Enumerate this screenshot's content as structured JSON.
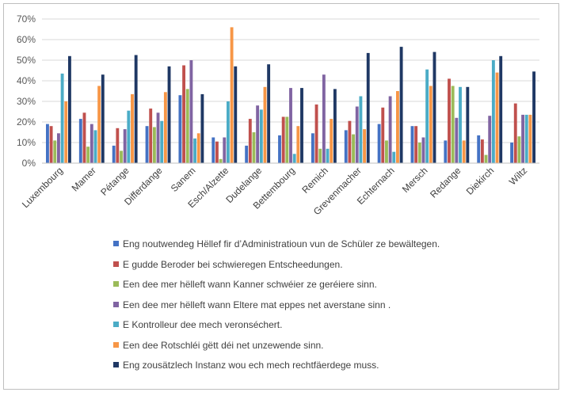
{
  "chart_data": {
    "type": "bar",
    "title": "",
    "xlabel": "",
    "ylabel": "",
    "ylim": [
      0,
      70
    ],
    "y_ticks": [
      "0%",
      "10%",
      "20%",
      "30%",
      "40%",
      "50%",
      "60%",
      "70%"
    ],
    "grid": true,
    "legend_position": "bottom",
    "categories": [
      "Luxembourg",
      "Mamer",
      "Pétange",
      "Differdange",
      "Sanem",
      "Esch/Alzette",
      "Dudelange",
      "Bettembourg",
      "Remich",
      "Grevenmacher",
      "Echternach",
      "Mersch",
      "Redange",
      "Diekirch",
      "Wiltz"
    ],
    "series": [
      {
        "name": "Eng noutwendeg Hëllef fir d’Administratioun vun de Schüler ze bewältegen.",
        "color": "#4472C4",
        "values": [
          19,
          21.5,
          8.5,
          18,
          33,
          12.5,
          8.5,
          13.5,
          14.5,
          16,
          19,
          18,
          11,
          13.5,
          10
        ]
      },
      {
        "name": "E gudde Beroder bei schwieregen Entscheedungen.",
        "color": "#C0504D",
        "values": [
          18,
          24.5,
          17,
          26.5,
          47.5,
          10.5,
          21.5,
          22.5,
          28.5,
          20.5,
          27,
          18,
          41,
          11.5,
          29
        ]
      },
      {
        "name": "Een dee mer hëlleft wann Kanner schwéier ze geréiere sinn.",
        "color": "#9BBB59",
        "values": [
          11,
          8,
          6,
          17.5,
          36,
          2,
          15,
          22.5,
          7,
          14,
          11,
          10,
          37.5,
          4,
          13
        ]
      },
      {
        "name": "Een dee mer hëlleft wann Eltere mat eppes net averstane sinn .",
        "color": "#8064A2",
        "values": [
          14.5,
          19,
          16.5,
          24.5,
          50,
          12.5,
          28,
          36.5,
          43,
          27.5,
          32.5,
          12.5,
          22,
          23,
          23.5
        ]
      },
      {
        "name": "E Kontrolleur dee mech veronséchert.",
        "color": "#4BACC6",
        "values": [
          43.5,
          16,
          25.5,
          20.5,
          12,
          30,
          26,
          4.5,
          7,
          32.5,
          5.5,
          45.5,
          37,
          50,
          23.5
        ]
      },
      {
        "name": "Een dee Rotschléi gëtt déi net unzewende sinn.",
        "color": "#F79646",
        "values": [
          30,
          37.5,
          33.5,
          34.5,
          14.5,
          66,
          37,
          18,
          21.5,
          16.5,
          35,
          37.5,
          11,
          44,
          23.5
        ]
      },
      {
        "name": "Eng zousätzlech Instanz wou ech mech rechtfäerdege muss.",
        "color": "#1F3864",
        "values": [
          52,
          43,
          52.5,
          47,
          33.5,
          47,
          48,
          36.5,
          36,
          53.5,
          56.5,
          54,
          37,
          52,
          44.5
        ]
      }
    ]
  }
}
